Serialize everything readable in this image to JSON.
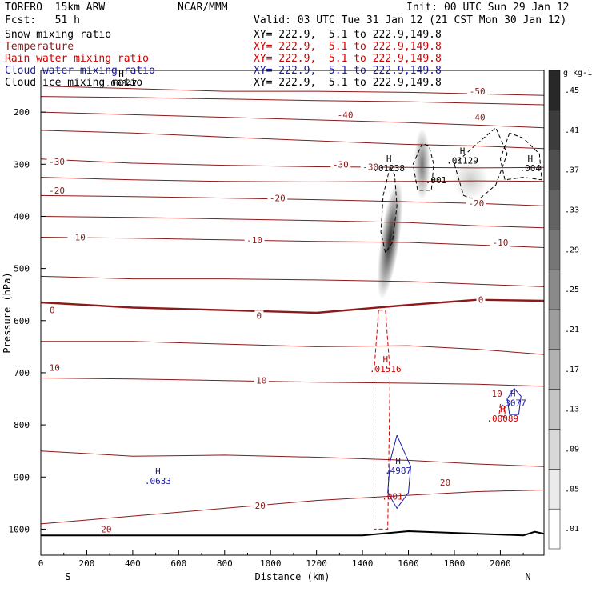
{
  "header": {
    "model": "TORERO  15km ARW",
    "org": "NCAR/MMM",
    "init": "Init: 00 UTC Sun 29 Jan 12",
    "fcst": "Fcst:   51 h",
    "valid": "Valid: 03 UTC Tue 31 Jan 12 (21 CST Mon 30 Jan 12)"
  },
  "legend": [
    {
      "label": "Snow mixing ratio",
      "color": "#000000",
      "xy": "XY= 222.9,  5.1 to 222.9,149.8"
    },
    {
      "label": "Temperature",
      "color": "#8b1a1a",
      "xy": "XY= 222.9,  5.1 to 222.9,149.8"
    },
    {
      "label": "Rain water mixing ratio",
      "color": "#d00000",
      "xy": "XY= 222.9,  5.1 to 222.9,149.8"
    },
    {
      "label": "Cloud water mixing ratio",
      "color": "#1a1aa8",
      "xy": "XY= 222.9,  5.1 to 222.9,149.8"
    },
    {
      "label": "Cloud ice mixing ratio",
      "color": "#000000",
      "xy": "XY= 222.9,  5.1 to 222.9,149.8"
    }
  ],
  "colors": {
    "temperature": "#8b1a1a",
    "rain": "#d00000",
    "cloud_water": "#1a1aa8",
    "ice": "#000000",
    "terrain": "#000000"
  },
  "chart_data": {
    "type": "cross-section",
    "xlabel": "Distance (km)",
    "ylabel": "Pressure (hPa)",
    "xlim": [
      0,
      2190
    ],
    "ylim": [
      1050,
      120
    ],
    "x_ticks": [
      0,
      200,
      400,
      600,
      800,
      1000,
      1200,
      1400,
      1600,
      1800,
      2000
    ],
    "y_ticks": [
      200,
      300,
      400,
      500,
      600,
      700,
      800,
      900,
      1000
    ],
    "left_end_label": "S",
    "right_end_label": "N",
    "temperature_contours": [
      {
        "level": -50,
        "p": [
          150,
          155,
          160,
          160,
          162,
          165,
          168
        ],
        "x": [
          0,
          400,
          800,
          1200,
          1600,
          1900,
          2190
        ]
      },
      {
        "level": -45,
        "p": [
          170,
          172,
          175,
          178,
          180,
          183,
          186
        ],
        "x": [
          0,
          400,
          800,
          1200,
          1600,
          1900,
          2190
        ]
      },
      {
        "level": -40,
        "p": [
          200,
          205,
          210,
          215,
          220,
          225,
          230
        ],
        "x": [
          0,
          400,
          800,
          1200,
          1600,
          1900,
          2190
        ]
      },
      {
        "level": -35,
        "p": [
          235,
          240,
          248,
          255,
          262,
          265,
          270
        ],
        "x": [
          0,
          400,
          800,
          1200,
          1600,
          1900,
          2190
        ]
      },
      {
        "level": -30,
        "p": [
          290,
          298,
          302,
          305,
          306,
          307,
          306
        ],
        "x": [
          0,
          400,
          800,
          1200,
          1600,
          1900,
          2190
        ]
      },
      {
        "level": -25,
        "p": [
          325,
          330,
          333,
          334,
          333,
          332,
          333
        ],
        "x": [
          0,
          400,
          800,
          1200,
          1600,
          1900,
          2190
        ]
      },
      {
        "level": -20,
        "p": [
          360,
          362,
          365,
          368,
          372,
          375,
          380
        ],
        "x": [
          0,
          400,
          800,
          1200,
          1600,
          1900,
          2190
        ]
      },
      {
        "level": -15,
        "p": [
          400,
          402,
          405,
          408,
          412,
          418,
          422
        ],
        "x": [
          0,
          400,
          800,
          1200,
          1600,
          1900,
          2190
        ]
      },
      {
        "level": -10,
        "p": [
          440,
          442,
          445,
          448,
          450,
          455,
          460
        ],
        "x": [
          0,
          400,
          800,
          1200,
          1600,
          1900,
          2190
        ]
      },
      {
        "level": -5,
        "p": [
          515,
          520,
          520,
          522,
          525,
          530,
          535
        ],
        "x": [
          0,
          400,
          800,
          1200,
          1600,
          1900,
          2190
        ]
      },
      {
        "level": 0,
        "p": [
          565,
          575,
          580,
          585,
          570,
          560,
          562
        ],
        "x": [
          0,
          400,
          800,
          1200,
          1600,
          1900,
          2190
        ]
      },
      {
        "level": 5,
        "p": [
          640,
          640,
          645,
          650,
          648,
          655,
          665
        ],
        "x": [
          0,
          400,
          800,
          1200,
          1600,
          1900,
          2190
        ]
      },
      {
        "level": 10,
        "p": [
          710,
          712,
          715,
          718,
          720,
          722,
          726
        ],
        "x": [
          0,
          400,
          800,
          1200,
          1600,
          1900,
          2190
        ]
      },
      {
        "level": 15,
        "p": [
          850,
          860,
          858,
          862,
          868,
          875,
          880
        ],
        "x": [
          0,
          400,
          800,
          1200,
          1600,
          1900,
          2190
        ]
      },
      {
        "level": 20,
        "p": [
          990,
          975,
          960,
          945,
          935,
          928,
          925
        ],
        "x": [
          0,
          400,
          800,
          1200,
          1600,
          1900,
          2190
        ]
      }
    ],
    "temperature_labels": [
      {
        "text": "-50",
        "x": 1900,
        "p": 160
      },
      {
        "text": "-40",
        "x": 1325,
        "p": 205
      },
      {
        "text": "-40",
        "x": 1900,
        "p": 210
      },
      {
        "text": "-30",
        "x": 70,
        "p": 295
      },
      {
        "text": "-30",
        "x": 1305,
        "p": 300
      },
      {
        "text": "-30",
        "x": 1435,
        "p": 305
      },
      {
        "text": "-20",
        "x": 70,
        "p": 350
      },
      {
        "text": "-20",
        "x": 1030,
        "p": 365
      },
      {
        "text": "-20",
        "x": 1895,
        "p": 375
      },
      {
        "text": "-10",
        "x": 160,
        "p": 440
      },
      {
        "text": "-10",
        "x": 930,
        "p": 445
      },
      {
        "text": "-10",
        "x": 2000,
        "p": 450
      },
      {
        "text": "0",
        "x": 50,
        "p": 580
      },
      {
        "text": "0",
        "x": 950,
        "p": 590
      },
      {
        "text": "0",
        "x": 1915,
        "p": 560
      },
      {
        "text": "10",
        "x": 60,
        "p": 690
      },
      {
        "text": "10",
        "x": 960,
        "p": 715
      },
      {
        "text": "10",
        "x": 1985,
        "p": 740
      },
      {
        "text": "20",
        "x": 285,
        "p": 1000
      },
      {
        "text": "20",
        "x": 955,
        "p": 955
      },
      {
        "text": "20",
        "x": 1760,
        "p": 910
      }
    ],
    "maxima_labels": [
      {
        "text": "H",
        "value": ".00047",
        "x": 350,
        "p": 132,
        "color": "#000000"
      },
      {
        "text": "H",
        "value": ".01238",
        "x": 1515,
        "p": 295,
        "color": "#000000"
      },
      {
        "text": "H",
        "value": ".01129",
        "x": 1835,
        "p": 280,
        "color": "#000000"
      },
      {
        "text": "H",
        "value": ".004",
        "x": 2130,
        "p": 295,
        "color": "#000000"
      },
      {
        "text": "",
        "value": ".001",
        "x": 1720,
        "p": 318,
        "color": "#000000"
      },
      {
        "text": "H",
        "value": ".01516",
        "x": 1500,
        "p": 680,
        "color": "#d00000"
      },
      {
        "text": "H",
        "value": ".0633",
        "x": 510,
        "p": 895,
        "color": "#1a1aa8"
      },
      {
        "text": "H",
        "value": ".4987",
        "x": 1555,
        "p": 875,
        "color": "#1a1aa8"
      },
      {
        "text": "",
        "value": ".001",
        "x": 1530,
        "p": 925,
        "color": "#d00000"
      },
      {
        "text": "H",
        "value": ".3077",
        "x": 2055,
        "p": 745,
        "color": "#1a1aa8"
      },
      {
        "text": "H",
        "value": ".00089",
        "x": 2010,
        "p": 775,
        "color": "#d00000"
      }
    ],
    "snow_shading": [
      {
        "x": 1520,
        "p": 445,
        "intensity": 0.85
      },
      {
        "x": 1660,
        "p": 300,
        "intensity": 0.55
      },
      {
        "x": 1870,
        "p": 330,
        "intensity": 0.2
      }
    ],
    "colorbar": {
      "units": "g kg-1",
      "levels": [
        ".01",
        ".05",
        ".09",
        ".13",
        ".17",
        ".21",
        ".25",
        ".29",
        ".33",
        ".37",
        ".41",
        ".45"
      ]
    }
  }
}
